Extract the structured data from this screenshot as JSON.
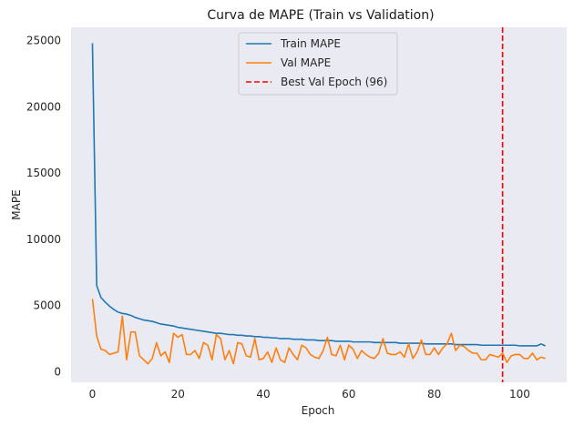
{
  "chart_data": {
    "type": "line",
    "title": "Curva de MAPE (Train vs Validation)",
    "xlabel": "Epoch",
    "ylabel": "MAPE",
    "xlim": [
      -5,
      111
    ],
    "ylim": [
      -800,
      26000
    ],
    "xticks": [
      0,
      20,
      40,
      60,
      80,
      100
    ],
    "yticks": [
      0,
      5000,
      10000,
      15000,
      20000,
      25000
    ],
    "grid": false,
    "background": "#eaeaf2",
    "legend": {
      "position": "top-center"
    },
    "series": [
      {
        "name": "Train MAPE",
        "color": "#1f77b4",
        "values": [
          24800,
          6500,
          5600,
          5250,
          4950,
          4700,
          4500,
          4400,
          4350,
          4250,
          4100,
          4000,
          3900,
          3850,
          3800,
          3700,
          3600,
          3550,
          3500,
          3450,
          3350,
          3300,
          3250,
          3200,
          3150,
          3100,
          3050,
          3000,
          2950,
          2900,
          2900,
          2850,
          2800,
          2800,
          2750,
          2750,
          2700,
          2700,
          2650,
          2650,
          2600,
          2600,
          2550,
          2550,
          2500,
          2500,
          2500,
          2450,
          2450,
          2450,
          2400,
          2400,
          2400,
          2350,
          2350,
          2350,
          2350,
          2300,
          2300,
          2300,
          2300,
          2250,
          2250,
          2250,
          2250,
          2250,
          2200,
          2200,
          2200,
          2200,
          2200,
          2200,
          2150,
          2150,
          2150,
          2150,
          2150,
          2150,
          2100,
          2100,
          2100,
          2100,
          2100,
          2100,
          2100,
          2050,
          2050,
          2050,
          2050,
          2050,
          2050,
          2000,
          2000,
          2000,
          2000,
          2000,
          2000,
          2000,
          2000,
          2000,
          1950,
          1950,
          1950,
          1950,
          1950,
          2100,
          1950
        ]
      },
      {
        "name": "Val MAPE",
        "color": "#ff7f0e",
        "values": [
          5500,
          2700,
          1700,
          1600,
          1300,
          1400,
          1500,
          4200,
          900,
          3000,
          3000,
          1200,
          900,
          600,
          1000,
          2200,
          1200,
          1500,
          700,
          2900,
          2600,
          2800,
          1300,
          1300,
          1600,
          1000,
          2200,
          2000,
          900,
          2800,
          2500,
          900,
          1600,
          600,
          2200,
          2100,
          1200,
          1100,
          2500,
          900,
          1000,
          1500,
          700,
          1800,
          900,
          700,
          1800,
          1300,
          900,
          2000,
          1800,
          1300,
          1100,
          1000,
          1600,
          2600,
          1300,
          1200,
          2000,
          900,
          2000,
          1700,
          1000,
          1600,
          1300,
          1100,
          1000,
          1400,
          2500,
          1400,
          1300,
          1300,
          1500,
          1100,
          2100,
          1000,
          1500,
          2400,
          1300,
          1300,
          1800,
          1300,
          1800,
          2100,
          2900,
          1600,
          2000,
          1900,
          1600,
          1400,
          1400,
          900,
          900,
          1300,
          1200,
          1100,
          1400,
          700,
          1200,
          1300,
          1300,
          1000,
          1000,
          1400,
          900,
          1100,
          1000
        ]
      },
      {
        "name": "Best Val Epoch (96)",
        "color": "#ff0000",
        "type": "vline",
        "x": 96,
        "dash": "dashed"
      }
    ]
  }
}
